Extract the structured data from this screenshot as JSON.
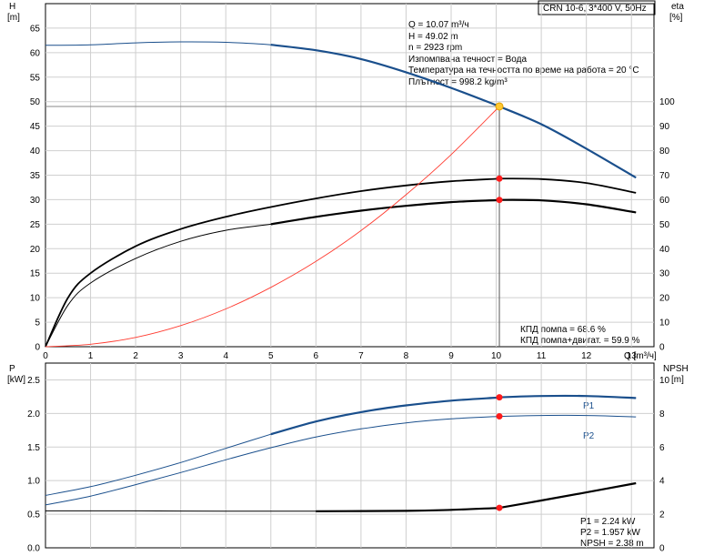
{
  "chart_data": [
    {
      "type": "line",
      "title_box": "CRN 10-6, 3*400 V, 50Hz",
      "ylabel_left": "H",
      "yunit_left": "[m]",
      "ylabel_right": "eta",
      "yunit_right": "[%]",
      "xlabel": "Q [m³/ч]",
      "xlim": [
        0,
        13.5
      ],
      "ylim_left": [
        0,
        70
      ],
      "ylim_right": [
        0,
        140
      ],
      "x_ticks": [
        0,
        1,
        2,
        3,
        4,
        5,
        6,
        7,
        8,
        9,
        10,
        11,
        12,
        13
      ],
      "y_ticks_left": [
        0,
        5,
        10,
        15,
        20,
        25,
        30,
        35,
        40,
        45,
        50,
        55,
        60,
        65
      ],
      "y_ticks_right": [
        0,
        10,
        20,
        30,
        40,
        50,
        60,
        70,
        80,
        90,
        100
      ],
      "grid": true,
      "duty_point": {
        "q": 10.07,
        "h": 49.02,
        "eta_pump": 68.6,
        "eta_total": 59.9
      },
      "info_lines": [
        "Q = 10.07 m³/ч",
        "H = 49.02 m",
        "n = 2923 rpm",
        "Изпомпвана течност = Вода",
        "Температура на течността по време на работа = 20 °C",
        "Плътност = 998.2 kg/m³"
      ],
      "efficiency_lines": [
        "КПД помпа = 68.6 %",
        "КПД помпа+двигат. = 59.9 %"
      ],
      "series": [
        {
          "id": "H",
          "axis": "left",
          "color": "#1a4f8c",
          "x": [
            0,
            1,
            2,
            3,
            4,
            5,
            6,
            7,
            8,
            9,
            10,
            10.07,
            11,
            12,
            13.1
          ],
          "y": [
            61.5,
            61.6,
            62.0,
            62.2,
            62.1,
            61.6,
            60.5,
            58.7,
            56.0,
            52.8,
            49.3,
            49.02,
            45.4,
            40.4,
            34.5
          ]
        },
        {
          "id": "eta_pump",
          "axis": "right",
          "color": "#000000",
          "x": [
            0,
            0.5,
            1,
            2,
            3,
            4,
            5,
            6,
            7,
            8,
            9,
            10,
            10.07,
            11,
            12,
            13.1
          ],
          "y": [
            0,
            20,
            30,
            41,
            48,
            53,
            57,
            60.5,
            63.5,
            65.8,
            67.5,
            68.5,
            68.6,
            68.4,
            66.8,
            62.8
          ]
        },
        {
          "id": "eta_total",
          "axis": "right",
          "color": "#000000",
          "x": [
            0,
            0.5,
            1,
            2,
            3,
            4,
            5,
            6,
            7,
            8,
            9,
            10,
            10.07,
            11,
            12,
            13.1
          ],
          "y": [
            0,
            17,
            26,
            36,
            43,
            47.5,
            50,
            53,
            55.5,
            57.5,
            59,
            59.8,
            59.9,
            59.7,
            58.1,
            54.8
          ]
        },
        {
          "id": "system_curve",
          "axis": "left",
          "color": "#ff3b30",
          "x": [
            0,
            1,
            2,
            3,
            4,
            5,
            6,
            7,
            8,
            9,
            10.07
          ],
          "y": [
            0,
            0.5,
            1.9,
            4.3,
            7.7,
            12.1,
            17.4,
            23.7,
            31.0,
            39.2,
            49.02
          ]
        }
      ]
    },
    {
      "type": "line",
      "ylabel_left": "P",
      "yunit_left": "[kW]",
      "ylabel_right": "NPSH",
      "yunit_right": "[m]",
      "xlim": [
        0,
        13.5
      ],
      "ylim_left": [
        0,
        2.75
      ],
      "ylim_right": [
        0,
        11
      ],
      "y_ticks_left": [
        0.0,
        0.5,
        1.0,
        1.5,
        2.0,
        2.5
      ],
      "y_ticks_right": [
        0,
        2,
        4,
        6,
        8,
        10
      ],
      "grid": true,
      "legend_labels": [
        "P1",
        "P2"
      ],
      "values_lines": [
        "P1 = 2.24 kW",
        "P2 = 1.957 kW",
        "NPSH = 2.38 m"
      ],
      "series": [
        {
          "id": "P1",
          "axis": "left",
          "color": "#1a4f8c",
          "name": "P1",
          "x": [
            0,
            1,
            2,
            3,
            4,
            5,
            6,
            7,
            8,
            9,
            10,
            10.07,
            11,
            12,
            13.1
          ],
          "y": [
            0.78,
            0.91,
            1.08,
            1.27,
            1.48,
            1.69,
            1.88,
            2.02,
            2.12,
            2.19,
            2.235,
            2.24,
            2.26,
            2.26,
            2.23
          ]
        },
        {
          "id": "P2",
          "axis": "left",
          "color": "#1a4f8c",
          "name": "P2",
          "x": [
            0,
            1,
            2,
            3,
            4,
            5,
            6,
            7,
            8,
            9,
            10,
            10.07,
            11,
            12,
            13.1
          ],
          "y": [
            0.64,
            0.77,
            0.94,
            1.12,
            1.31,
            1.49,
            1.65,
            1.77,
            1.86,
            1.92,
            1.955,
            1.957,
            1.97,
            1.97,
            1.95
          ]
        },
        {
          "id": "NPSH",
          "axis": "right",
          "color": "#000000",
          "x": [
            0,
            2,
            4,
            6,
            8,
            9,
            10,
            10.07,
            11,
            12,
            13.1
          ],
          "y": [
            2.2,
            2.2,
            2.18,
            2.18,
            2.2,
            2.26,
            2.37,
            2.38,
            2.82,
            3.3,
            3.85
          ]
        }
      ]
    }
  ]
}
